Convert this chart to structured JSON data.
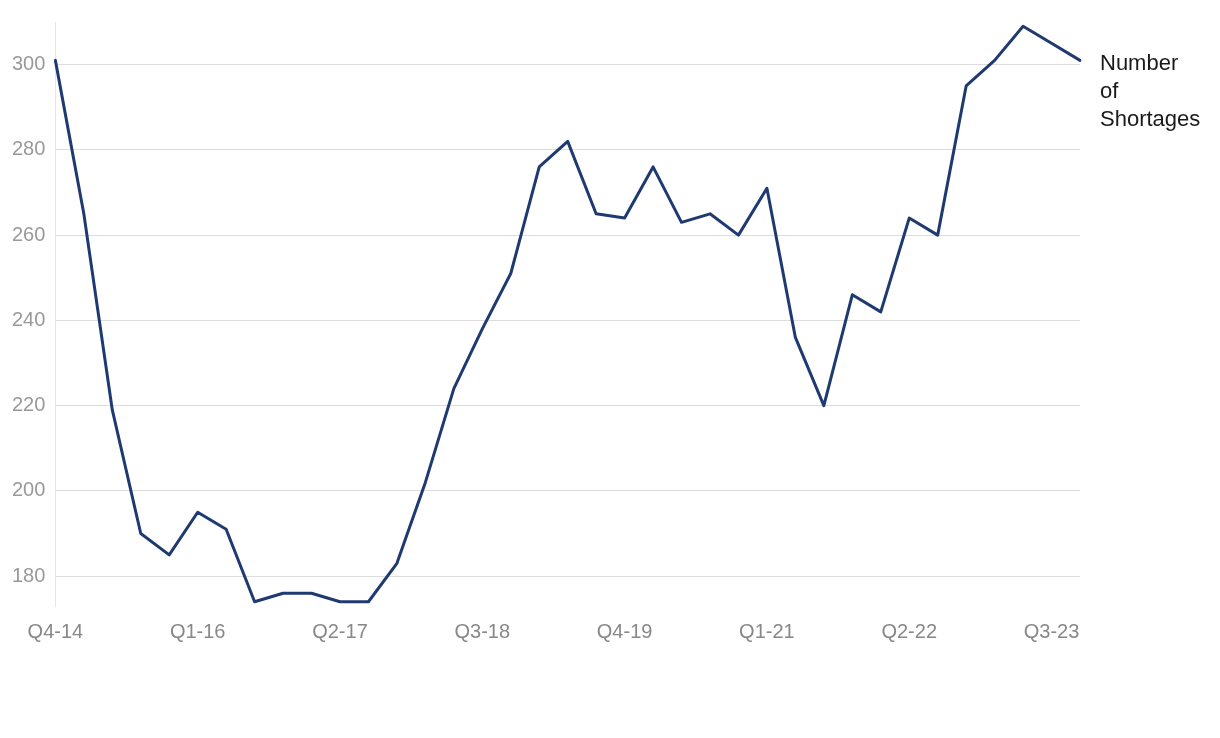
{
  "chart_data": {
    "type": "line",
    "categories": [
      "Q4-14",
      null,
      null,
      null,
      null,
      "Q1-16",
      null,
      null,
      null,
      null,
      "Q2-17",
      null,
      null,
      null,
      null,
      "Q3-18",
      null,
      null,
      null,
      null,
      "Q4-19",
      null,
      null,
      null,
      null,
      "Q1-21",
      null,
      null,
      null,
      null,
      "Q2-22",
      null,
      null,
      null,
      null,
      "Q3-23",
      null
    ],
    "series": [
      {
        "name": "Number of Shortages",
        "color": "#1f3a70",
        "values": [
          301,
          265,
          219,
          190,
          185,
          195,
          191,
          174,
          176,
          176,
          174,
          174,
          183,
          202,
          224,
          238,
          251,
          276,
          282,
          265,
          264,
          276,
          263,
          265,
          260,
          271,
          236,
          220,
          246,
          242,
          264,
          260,
          295,
          301,
          309,
          305,
          301
        ]
      }
    ],
    "ylim": [
      173,
      310
    ],
    "yticks": [
      180,
      200,
      220,
      240,
      260,
      280,
      300
    ],
    "grid": "y",
    "legend": false,
    "marker": "none",
    "line_style": "solid"
  }
}
